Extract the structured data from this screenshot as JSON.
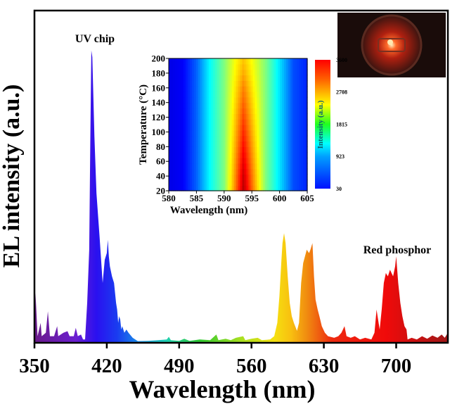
{
  "chart_data": [
    {
      "type": "area",
      "xlabel": "Wavelength (nm)",
      "ylabel": "EL intensity (a.u.)",
      "xlim": [
        350,
        750
      ],
      "ylim": [
        0,
        1
      ],
      "xticks": [
        "350",
        "420",
        "490",
        "560",
        "630",
        "700"
      ],
      "yticks_shown": false,
      "grid": false,
      "fill": "rainbow gradient by wavelength",
      "annotations": [
        {
          "text": "UV chip",
          "near_x": 405
        },
        {
          "text": "Red phosphor",
          "near_x": 700
        }
      ],
      "points": [
        [
          350,
          0.02
        ],
        [
          351,
          0.15
        ],
        [
          353,
          0.02
        ],
        [
          356,
          0.06
        ],
        [
          357,
          0.02
        ],
        [
          361,
          0.03
        ],
        [
          363,
          0.095
        ],
        [
          365,
          0.02
        ],
        [
          369,
          0.02
        ],
        [
          372,
          0.05
        ],
        [
          373,
          0.02
        ],
        [
          378,
          0.03
        ],
        [
          382,
          0.035
        ],
        [
          384,
          0.02
        ],
        [
          388,
          0.02
        ],
        [
          390,
          0.045
        ],
        [
          392,
          0.02
        ],
        [
          395,
          0.025
        ],
        [
          397,
          0.01
        ],
        [
          399,
          0.01
        ],
        [
          401,
          0.12
        ],
        [
          403,
          0.28
        ],
        [
          404,
          0.6
        ],
        [
          405,
          0.88
        ],
        [
          406,
          0.86
        ],
        [
          408,
          0.62
        ],
        [
          410,
          0.45
        ],
        [
          413,
          0.32
        ],
        [
          416,
          0.18
        ],
        [
          418,
          0.25
        ],
        [
          420,
          0.27
        ],
        [
          421,
          0.31
        ],
        [
          422,
          0.26
        ],
        [
          423,
          0.23
        ],
        [
          425,
          0.2
        ],
        [
          427,
          0.18
        ],
        [
          429,
          0.12
        ],
        [
          430,
          0.1
        ],
        [
          431,
          0.06
        ],
        [
          432,
          0.08
        ],
        [
          433,
          0.07
        ],
        [
          434,
          0.04
        ],
        [
          435,
          0.05
        ],
        [
          437,
          0.03
        ],
        [
          439,
          0.04
        ],
        [
          441,
          0.03
        ],
        [
          445,
          0.015
        ],
        [
          450,
          0.005
        ],
        [
          460,
          0.006
        ],
        [
          470,
          0.008
        ],
        [
          478,
          0.01
        ],
        [
          480,
          0.018
        ],
        [
          482,
          0.008
        ],
        [
          490,
          0.006
        ],
        [
          495,
          0.012
        ],
        [
          500,
          0.006
        ],
        [
          510,
          0.01
        ],
        [
          520,
          0.008
        ],
        [
          526,
          0.025
        ],
        [
          528,
          0.008
        ],
        [
          535,
          0.012
        ],
        [
          540,
          0.008
        ],
        [
          545,
          0.015
        ],
        [
          552,
          0.02
        ],
        [
          554,
          0.008
        ],
        [
          560,
          0.012
        ],
        [
          566,
          0.015
        ],
        [
          570,
          0.008
        ],
        [
          578,
          0.01
        ],
        [
          582,
          0.02
        ],
        [
          585,
          0.06
        ],
        [
          587,
          0.14
        ],
        [
          589,
          0.25
        ],
        [
          590,
          0.3
        ],
        [
          591.5,
          0.33
        ],
        [
          593,
          0.3
        ],
        [
          595,
          0.2
        ],
        [
          597,
          0.12
        ],
        [
          599,
          0.08
        ],
        [
          601,
          0.06
        ],
        [
          604,
          0.036
        ],
        [
          606,
          0.06
        ],
        [
          608,
          0.18
        ],
        [
          610,
          0.24
        ],
        [
          613.5,
          0.28
        ],
        [
          615.7,
          0.27
        ],
        [
          617,
          0.28
        ],
        [
          619,
          0.3
        ],
        [
          620.5,
          0.2
        ],
        [
          622,
          0.13
        ],
        [
          624,
          0.1
        ],
        [
          625.7,
          0.08
        ],
        [
          628,
          0.05
        ],
        [
          631,
          0.03
        ],
        [
          634,
          0.02
        ],
        [
          640,
          0.015
        ],
        [
          644,
          0.02
        ],
        [
          647,
          0.03
        ],
        [
          650,
          0.05
        ],
        [
          652,
          0.02
        ],
        [
          656,
          0.015
        ],
        [
          660,
          0.02
        ],
        [
          665,
          0.01
        ],
        [
          670,
          0.015
        ],
        [
          676,
          0.01
        ],
        [
          679,
          0.03
        ],
        [
          681,
          0.1
        ],
        [
          682,
          0.08
        ],
        [
          684,
          0.04
        ],
        [
          686,
          0.1
        ],
        [
          688,
          0.18
        ],
        [
          690,
          0.21
        ],
        [
          692,
          0.2
        ],
        [
          694,
          0.22
        ],
        [
          697,
          0.2
        ],
        [
          699,
          0.23
        ],
        [
          700,
          0.26
        ],
        [
          702,
          0.18
        ],
        [
          704,
          0.12
        ],
        [
          706,
          0.08
        ],
        [
          708,
          0.05
        ],
        [
          710,
          0.04
        ],
        [
          711,
          0.01
        ],
        [
          715,
          0.015
        ],
        [
          720,
          0.01
        ],
        [
          725,
          0.02
        ],
        [
          730,
          0.012
        ],
        [
          735,
          0.022
        ],
        [
          740,
          0.015
        ],
        [
          744,
          0.025
        ],
        [
          747,
          0.015
        ],
        [
          750,
          0.03
        ]
      ]
    },
    {
      "type": "heatmap",
      "xlabel": "Wavelength (nm)",
      "ylabel": "Temperature (°C)",
      "xlim": [
        580,
        605
      ],
      "ylim": [
        20,
        200
      ],
      "xticks": [
        "580",
        "585",
        "590",
        "595",
        "600",
        "605"
      ],
      "yticks": [
        "20",
        "40",
        "60",
        "80",
        "100",
        "120",
        "140",
        "160",
        "180",
        "200"
      ],
      "colorbar": {
        "label": "Intensity (a.u.)",
        "ticks": [
          "30",
          "923",
          "1815",
          "2708",
          "3600"
        ],
        "range": [
          30,
          3600
        ],
        "colormap": "jet"
      },
      "wavelengths": [
        580,
        582.5,
        585,
        587.5,
        590,
        592,
        593.5,
        595,
        597.5,
        600,
        602.5,
        605
      ],
      "temperatures": [
        20,
        40,
        60,
        80,
        100,
        120,
        140,
        160,
        180,
        200
      ],
      "intensity": [
        [
          387,
          458,
          815,
          1387,
          1815,
          2708,
          3422,
          2815,
          1815,
          1280,
          744,
          601
        ],
        [
          387,
          458,
          815,
          1387,
          1815,
          2656,
          3350,
          2751,
          1815,
          1280,
          744,
          601
        ],
        [
          387,
          458,
          815,
          1387,
          1815,
          2604,
          3243,
          2687,
          1815,
          1280,
          744,
          601
        ],
        [
          387,
          458,
          815,
          1387,
          1815,
          2553,
          3136,
          2622,
          1815,
          1280,
          744,
          601
        ],
        [
          387,
          458,
          815,
          1387,
          1815,
          2501,
          3029,
          2558,
          1815,
          1280,
          744,
          601
        ],
        [
          387,
          458,
          815,
          1387,
          1815,
          2449,
          2922,
          2494,
          1815,
          1280,
          744,
          601
        ],
        [
          387,
          458,
          815,
          1387,
          1815,
          2398,
          2815,
          2430,
          1815,
          1280,
          744,
          601
        ],
        [
          387,
          458,
          815,
          1387,
          1815,
          2346,
          2708,
          2366,
          1815,
          1280,
          744,
          601
        ],
        [
          387,
          458,
          815,
          1387,
          1815,
          2295,
          2565,
          2302,
          1815,
          1280,
          744,
          601
        ],
        [
          387,
          458,
          815,
          1387,
          1815,
          2243,
          2458,
          2243,
          1815,
          1280,
          744,
          601
        ]
      ]
    }
  ],
  "photo": {
    "subject": "glowing red LED",
    "glow_color": "#ff5a1e"
  }
}
